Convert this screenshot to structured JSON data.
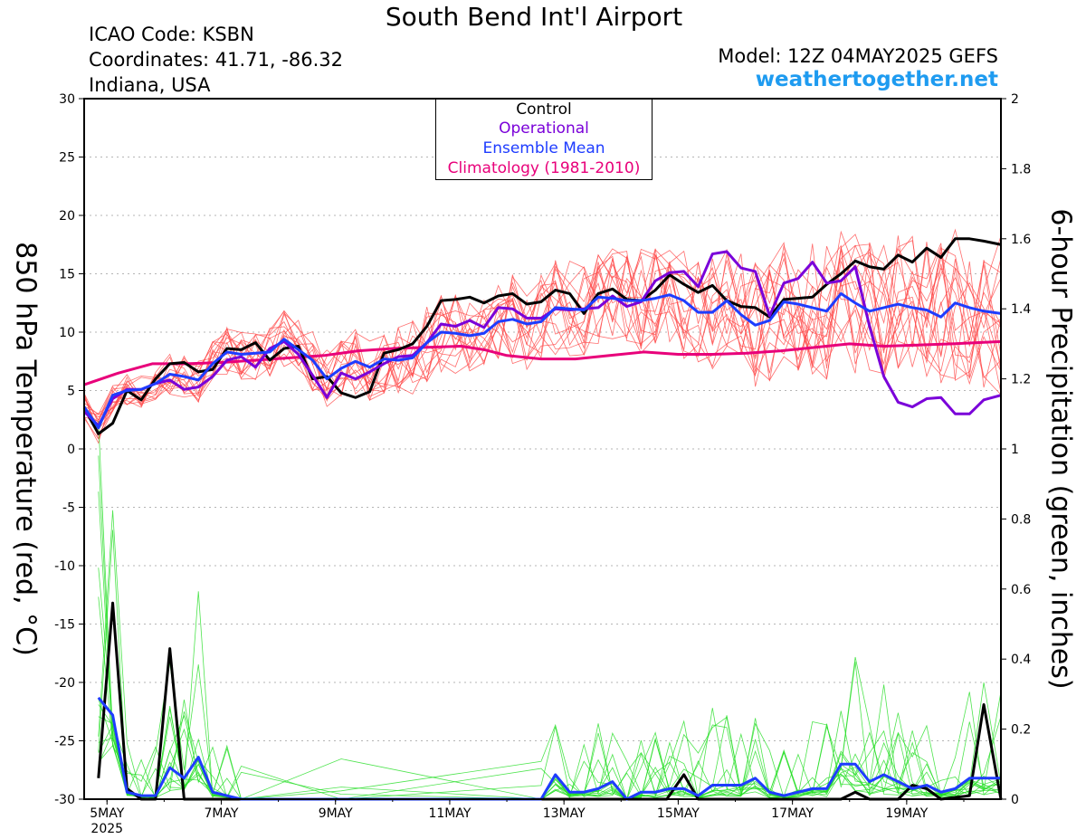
{
  "header": {
    "title": "South Bend Int'l Airport",
    "icao": "ICAO Code: KSBN",
    "coordinates": "Coordinates: 41.71, -86.32",
    "location": "Indiana, USA",
    "model": "Model: 12Z 04MAY2025 GEFS",
    "brand": "weathertogether.net"
  },
  "legend": {
    "control": "Control",
    "operational": "Operational",
    "ensemble_mean": "Ensemble Mean",
    "climatology": "Climatology (1981-2010)"
  },
  "colors": {
    "control": "#000000",
    "operational": "#7a00d9",
    "ensemble_mean": "#1e3cff",
    "climatology": "#e8007a",
    "members_temp": "#ff4a4a",
    "members_precip": "#22dd22",
    "brand": "#1e9bf0"
  },
  "chart_data": {
    "type": "line",
    "title": "South Bend Int'l Airport",
    "ylabel": "850 hPa Temperature (red, °C)",
    "y2label": "6-hour Precipitation (green, inches)",
    "ylim": [
      -30,
      30
    ],
    "y2lim": [
      0,
      2
    ],
    "xlim": [
      4.6,
      20.65
    ],
    "yticks": [
      "30",
      "25",
      "20",
      "15",
      "10",
      "5",
      "0",
      "-5",
      "-10",
      "-15",
      "-20",
      "-25",
      "-30"
    ],
    "y2ticks": [
      "2",
      "1.8",
      "1.6",
      "1.4",
      "1.2",
      "1",
      "0.8",
      "0.6",
      "0.4",
      "0.2",
      "0"
    ],
    "xticks": [
      {
        "day": 5,
        "label": "5MAY",
        "sub": "2025"
      },
      {
        "day": 7,
        "label": "7MAY",
        "sub": ""
      },
      {
        "day": 9,
        "label": "9MAY",
        "sub": ""
      },
      {
        "day": 11,
        "label": "11MAY",
        "sub": ""
      },
      {
        "day": 13,
        "label": "13MAY",
        "sub": ""
      },
      {
        "day": 15,
        "label": "15MAY",
        "sub": ""
      },
      {
        "day": 17,
        "label": "17MAY",
        "sub": ""
      },
      {
        "day": 19,
        "label": "19MAY",
        "sub": ""
      }
    ],
    "grid": true,
    "legend_position": "top-center",
    "x_units": "day of May 2025",
    "series": [
      {
        "name": "Climatology (1981-2010)",
        "axis": "temp",
        "style": "climatology",
        "x": [
          4.6,
          5.2,
          5.8,
          6.4,
          7.0,
          7.6,
          8.2,
          8.8,
          9.4,
          10.0,
          10.6,
          11.2,
          11.6,
          12.0,
          12.6,
          13.2,
          13.8,
          14.4,
          15.0,
          15.6,
          16.2,
          16.8,
          17.4,
          18.0,
          18.6,
          19.2,
          19.8,
          20.65
        ],
        "y": [
          5.5,
          6.5,
          7.3,
          7.3,
          7.4,
          7.6,
          7.8,
          8.0,
          8.4,
          8.6,
          8.7,
          8.8,
          8.5,
          8.0,
          7.7,
          7.7,
          8.0,
          8.3,
          8.1,
          8.1,
          8.2,
          8.4,
          8.7,
          9.0,
          8.8,
          8.9,
          9.0,
          9.2
        ]
      },
      {
        "name": "Control",
        "axis": "temp",
        "style": "control",
        "x": [
          4.6,
          4.85,
          5.1,
          5.35,
          5.6,
          5.85,
          6.1,
          6.35,
          6.6,
          6.85,
          7.1,
          7.35,
          7.6,
          7.85,
          8.1,
          8.35,
          8.6,
          8.85,
          9.1,
          9.35,
          9.6,
          9.85,
          10.1,
          10.35,
          10.6,
          10.85,
          11.1,
          11.35,
          11.6,
          11.85,
          12.1,
          12.35,
          12.6,
          12.85,
          13.1,
          13.35,
          13.6,
          13.85,
          14.1,
          14.35,
          14.6,
          14.85,
          15.1,
          15.35,
          15.6,
          15.85,
          16.1,
          16.35,
          16.6,
          16.85,
          17.1,
          17.35,
          17.6,
          17.85,
          18.1,
          18.35,
          18.6,
          18.85,
          19.1,
          19.35,
          19.6,
          19.85,
          20.1,
          20.35,
          20.65
        ],
        "y": [
          3.5,
          1.3,
          2.2,
          5.0,
          4.2,
          6.0,
          7.3,
          7.4,
          6.6,
          6.8,
          8.6,
          8.5,
          9.1,
          7.6,
          8.6,
          8.8,
          6.0,
          6.2,
          4.8,
          4.4,
          4.9,
          8.2,
          8.5,
          9.0,
          10.5,
          12.7,
          12.8,
          13.0,
          12.5,
          13.1,
          13.3,
          12.4,
          12.6,
          13.6,
          13.3,
          11.6,
          13.3,
          13.7,
          12.8,
          12.7,
          13.6,
          14.9,
          14.1,
          13.4,
          14.0,
          12.7,
          12.2,
          12.1,
          11.3,
          12.8,
          12.9,
          13.0,
          14.1,
          15.0,
          16.1,
          15.6,
          15.4,
          16.6,
          16.0,
          17.2,
          16.4,
          18.0,
          18.0,
          17.8,
          17.5
        ]
      },
      {
        "name": "Operational",
        "axis": "temp",
        "style": "operational",
        "x": [
          4.6,
          4.85,
          5.1,
          5.35,
          5.6,
          5.85,
          6.1,
          6.35,
          6.6,
          6.85,
          7.1,
          7.35,
          7.6,
          7.85,
          8.1,
          8.35,
          8.6,
          8.85,
          9.1,
          9.35,
          9.6,
          9.85,
          10.1,
          10.35,
          10.6,
          10.85,
          11.1,
          11.35,
          11.6,
          11.85,
          12.1,
          12.35,
          12.6,
          12.85,
          13.1,
          13.35,
          13.6,
          13.85,
          14.1,
          14.35,
          14.6,
          14.85,
          15.1,
          15.35,
          15.6,
          15.85,
          16.1,
          16.35,
          16.6,
          16.85,
          17.1,
          17.35,
          17.6,
          17.85,
          18.1,
          18.35,
          18.6,
          18.85,
          19.1,
          19.35,
          19.6,
          19.85,
          20.1,
          20.35,
          20.65
        ],
        "y": [
          3.2,
          2.0,
          4.3,
          5.1,
          5.1,
          5.6,
          5.9,
          5.1,
          5.3,
          6.2,
          7.6,
          7.9,
          7.0,
          8.6,
          9.2,
          8.1,
          6.3,
          4.4,
          6.5,
          6.0,
          6.6,
          7.3,
          7.9,
          8.0,
          9.1,
          10.7,
          10.5,
          11.0,
          10.4,
          12.1,
          12.0,
          11.2,
          11.2,
          12.0,
          11.9,
          12.0,
          12.1,
          13.1,
          12.2,
          12.6,
          14.4,
          15.1,
          15.2,
          13.9,
          16.7,
          16.9,
          15.5,
          15.2,
          11.4,
          14.2,
          14.6,
          16.0,
          14.2,
          14.4,
          15.6,
          10.5,
          6.2,
          4.0,
          3.6,
          4.3,
          4.4,
          3.0,
          3.0,
          4.2,
          4.6
        ]
      },
      {
        "name": "Ensemble Mean",
        "axis": "temp",
        "style": "ensemble_mean",
        "x": [
          4.6,
          4.85,
          5.1,
          5.35,
          5.6,
          5.85,
          6.1,
          6.35,
          6.6,
          6.85,
          7.1,
          7.35,
          7.6,
          7.85,
          8.1,
          8.35,
          8.6,
          8.85,
          9.1,
          9.35,
          9.6,
          9.85,
          10.1,
          10.35,
          10.6,
          10.85,
          11.1,
          11.35,
          11.6,
          11.85,
          12.1,
          12.35,
          12.6,
          12.85,
          13.1,
          13.35,
          13.6,
          13.85,
          14.1,
          14.35,
          14.6,
          14.85,
          15.1,
          15.35,
          15.6,
          15.85,
          16.1,
          16.35,
          16.6,
          16.85,
          17.1,
          17.35,
          17.6,
          17.85,
          18.1,
          18.35,
          18.6,
          18.85,
          19.1,
          19.35,
          19.6,
          19.85,
          20.1,
          20.35,
          20.65
        ],
        "y": [
          3.6,
          1.8,
          4.6,
          5.0,
          5.1,
          5.6,
          6.4,
          6.2,
          5.9,
          7.3,
          8.3,
          8.1,
          8.2,
          8.3,
          9.4,
          8.5,
          7.6,
          6.0,
          6.9,
          7.5,
          7.0,
          7.7,
          7.6,
          7.8,
          9.1,
          10.0,
          9.9,
          9.7,
          9.9,
          10.9,
          11.1,
          10.7,
          10.9,
          12.1,
          12.0,
          11.9,
          13.0,
          12.9,
          12.7,
          12.7,
          12.9,
          13.2,
          12.7,
          11.7,
          11.7,
          12.7,
          11.5,
          10.6,
          11.0,
          12.6,
          12.4,
          12.1,
          11.8,
          13.3,
          12.5,
          11.8,
          12.1,
          12.4,
          12.1,
          11.9,
          11.3,
          12.5,
          12.1,
          11.8,
          11.6
        ]
      },
      {
        "name": "Control",
        "axis": "precip",
        "style": "control",
        "x": [
          4.85,
          5.1,
          5.35,
          5.6,
          5.85,
          6.1,
          6.35,
          6.6,
          9.0,
          9.3,
          14.8,
          15.1,
          15.35,
          15.6,
          17.85,
          18.1,
          18.35,
          18.85,
          19.1,
          19.35,
          19.6,
          20.1,
          20.35,
          20.65
        ],
        "y": [
          0.06,
          0.56,
          0.03,
          0.0,
          0.0,
          0.43,
          0.0,
          0.0,
          0.0,
          0.0,
          0.0,
          0.07,
          0.0,
          0.0,
          0.0,
          0.02,
          0.0,
          0.0,
          0.04,
          0.03,
          0.0,
          0.01,
          0.27,
          0.0
        ]
      },
      {
        "name": "Ensemble Mean",
        "axis": "precip",
        "style": "ensemble_mean",
        "x": [
          4.85,
          5.1,
          5.35,
          5.6,
          5.85,
          6.1,
          6.35,
          6.6,
          6.85,
          7.1,
          7.35,
          9.1,
          12.6,
          12.85,
          13.1,
          13.35,
          13.6,
          13.85,
          14.1,
          14.35,
          14.6,
          14.85,
          15.1,
          15.35,
          15.6,
          15.85,
          16.1,
          16.35,
          16.6,
          16.85,
          17.1,
          17.35,
          17.6,
          17.85,
          18.1,
          18.35,
          18.6,
          18.85,
          19.1,
          19.35,
          19.6,
          19.85,
          20.1,
          20.35,
          20.65
        ],
        "y": [
          0.29,
          0.24,
          0.02,
          0.01,
          0.01,
          0.09,
          0.06,
          0.12,
          0.02,
          0.01,
          0.0,
          0.0,
          0.0,
          0.07,
          0.02,
          0.02,
          0.03,
          0.05,
          0.0,
          0.02,
          0.02,
          0.03,
          0.03,
          0.01,
          0.04,
          0.04,
          0.04,
          0.06,
          0.02,
          0.01,
          0.02,
          0.03,
          0.03,
          0.1,
          0.1,
          0.05,
          0.07,
          0.05,
          0.03,
          0.04,
          0.02,
          0.03,
          0.06,
          0.06,
          0.06
        ]
      }
    ]
  }
}
